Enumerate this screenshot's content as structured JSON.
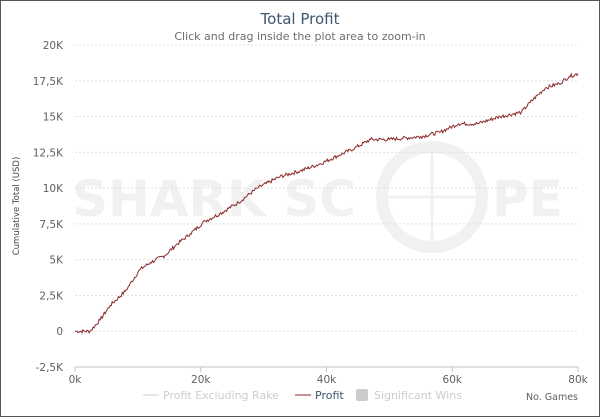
{
  "chart_data": {
    "type": "line",
    "title": "Total Profit",
    "subtitle": "Click and drag inside the plot area to zoom-in",
    "xlabel": "No. Games",
    "ylabel": "Cumulative Total (USD)",
    "xlim": [
      0,
      80000
    ],
    "ylim": [
      -2500,
      20000
    ],
    "x_ticks": [
      0,
      20000,
      40000,
      60000,
      80000
    ],
    "x_tick_labels": [
      "0k",
      "20k",
      "40k",
      "60k",
      "80k"
    ],
    "y_ticks": [
      -2500,
      0,
      2500,
      5000,
      7500,
      10000,
      12500,
      15000,
      17500,
      20000
    ],
    "y_tick_labels": [
      "-2,5K",
      "0",
      "2,5K",
      "5K",
      "7,5K",
      "10K",
      "12,5K",
      "15K",
      "17,5K",
      "20K"
    ],
    "grid": true,
    "legend_position": "bottom",
    "legend": [
      {
        "name": "Profit Excluding Rake",
        "color": "#cccccc",
        "active": false
      },
      {
        "name": "Profit",
        "color": "#8b2a2a",
        "active": true
      },
      {
        "name": "Significant Wins",
        "color": "#cccccc",
        "active": false
      }
    ],
    "series": [
      {
        "name": "Profit",
        "color": "#8b2a2a",
        "x": [
          0,
          2400,
          4000,
          5600,
          8000,
          10300,
          12000,
          14300,
          16000,
          18300,
          20700,
          23000,
          26000,
          29000,
          32600,
          35800,
          39000,
          42000,
          44500,
          47000,
          50000,
          55000,
          58000,
          61000,
          64000,
          67600,
          71000,
          72400,
          74800,
          77000,
          78600,
          80000
        ],
        "y": [
          0,
          0,
          800,
          1800,
          2800,
          4300,
          4800,
          5300,
          6000,
          6800,
          7700,
          8200,
          9000,
          10000,
          10800,
          11200,
          11700,
          12300,
          12800,
          13400,
          13400,
          13600,
          13900,
          14500,
          14500,
          15000,
          15300,
          16000,
          17000,
          17300,
          17800,
          18000
        ]
      }
    ]
  },
  "watermark": "SHARKSCOPE"
}
